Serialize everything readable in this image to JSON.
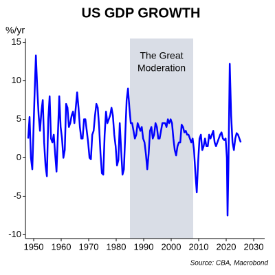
{
  "chart_data": {
    "type": "line",
    "title": "US GDP GROWTH",
    "y_label": "%/yr",
    "source": "Source: CBA, Macrobond",
    "annotation": [
      "The Great",
      "Moderation"
    ],
    "shaded_region": [
      1985,
      2008
    ],
    "shade_color": "#d9dde6",
    "color": "#0000ff",
    "grid": false,
    "xlim": [
      1947,
      2034
    ],
    "xticks": [
      1950,
      1960,
      1970,
      1980,
      1990,
      2000,
      2010,
      2020,
      2030
    ],
    "ylim": [
      -10.5,
      15.5
    ],
    "yticks": [
      -10,
      -5,
      0,
      5,
      10,
      15
    ],
    "x": [
      1948,
      1948.5,
      1949,
      1949.5,
      1950.3,
      1950.8,
      1951.3,
      1951.8,
      1952.3,
      1952.8,
      1953.3,
      1953.8,
      1954.3,
      1954.8,
      1955.3,
      1955.8,
      1956.3,
      1956.8,
      1957.3,
      1957.8,
      1958.3,
      1958.8,
      1959.3,
      1959.8,
      1960.3,
      1960.8,
      1961.3,
      1961.8,
      1962.3,
      1962.8,
      1963.3,
      1963.8,
      1964.3,
      1964.8,
      1965.3,
      1965.8,
      1966.3,
      1966.8,
      1967.3,
      1967.8,
      1968.3,
      1968.8,
      1969.3,
      1969.8,
      1970.3,
      1970.8,
      1971.3,
      1971.8,
      1972.3,
      1972.8,
      1973.3,
      1973.8,
      1974.3,
      1974.8,
      1975.3,
      1975.8,
      1976.3,
      1976.8,
      1977.3,
      1977.8,
      1978.3,
      1978.8,
      1979.3,
      1979.8,
      1980.3,
      1980.8,
      1981.3,
      1981.8,
      1982.3,
      1982.8,
      1983.3,
      1983.8,
      1984.3,
      1984.8,
      1985.3,
      1985.8,
      1986.3,
      1986.8,
      1987.3,
      1987.8,
      1988.3,
      1988.8,
      1989.3,
      1989.8,
      1990.3,
      1990.8,
      1991.3,
      1991.8,
      1992.3,
      1992.8,
      1993.3,
      1993.8,
      1994.3,
      1994.8,
      1995.3,
      1995.8,
      1996.3,
      1996.8,
      1997.3,
      1997.8,
      1998.3,
      1998.8,
      1999.3,
      1999.8,
      2000.3,
      2000.8,
      2001.3,
      2001.8,
      2002.3,
      2002.8,
      2003.3,
      2003.8,
      2004.3,
      2004.8,
      2005.3,
      2005.8,
      2006.3,
      2006.8,
      2007.3,
      2007.8,
      2008.3,
      2008.8,
      2009.3,
      2009.8,
      2010.3,
      2010.8,
      2011.3,
      2011.8,
      2012.3,
      2012.8,
      2013.3,
      2013.8,
      2014.3,
      2014.8,
      2015.3,
      2015.8,
      2016.3,
      2016.8,
      2017.3,
      2017.8,
      2018.3,
      2018.8,
      2019.3,
      2019.8,
      2020.25,
      2020.5,
      2020.8,
      2021.3,
      2021.8,
      2022.3,
      2022.8,
      2023.3,
      2023.8,
      2024.3,
      2024.8,
      2025.3
    ],
    "values": [
      2.5,
      5.3,
      0,
      -1.5,
      8,
      13.3,
      9,
      5.5,
      3.5,
      6,
      7.5,
      2,
      -1,
      -2.4,
      5,
      8,
      2.5,
      2,
      3,
      0.5,
      -1.8,
      3,
      8,
      4,
      2.5,
      0,
      1,
      7,
      6.5,
      4,
      4.5,
      5.5,
      6,
      4.5,
      6.5,
      8.5,
      6.5,
      4,
      2.5,
      2.5,
      5,
      5,
      3.5,
      2,
      0,
      -0.2,
      3,
      3.5,
      5.5,
      7,
      6.5,
      4,
      0.5,
      -2,
      -2.2,
      3,
      6,
      4.5,
      5,
      5.5,
      6.5,
      5.5,
      3,
      1.5,
      -1,
      -0.3,
      4.5,
      1,
      -2.2,
      -1.5,
      3,
      7.5,
      9,
      6.5,
      4.5,
      4.5,
      3.5,
      2.5,
      3,
      4.5,
      4,
      3.5,
      4,
      2.5,
      2,
      0.5,
      -1.5,
      0.5,
      3.5,
      4,
      2.5,
      3,
      4.5,
      4,
      2.5,
      2.5,
      3.5,
      4.5,
      4.5,
      4.5,
      4,
      5,
      4.5,
      5,
      4.5,
      2.5,
      1,
      0.3,
      1.5,
      2,
      2,
      4.3,
      4,
      3.3,
      3.5,
      3,
      3,
      2.5,
      2,
      2.5,
      1,
      -2,
      -4.5,
      -0.5,
      2.5,
      3,
      1,
      1.5,
      2.5,
      1.5,
      1.5,
      3,
      2.5,
      3,
      3.5,
      2,
      1.5,
      2,
      2.5,
      3,
      3.3,
      2.5,
      2.3,
      2.5,
      0,
      -7.5,
      -1.5,
      12.2,
      5.5,
      2,
      1,
      2.5,
      3.2,
      3,
      2.5,
      2
    ]
  }
}
